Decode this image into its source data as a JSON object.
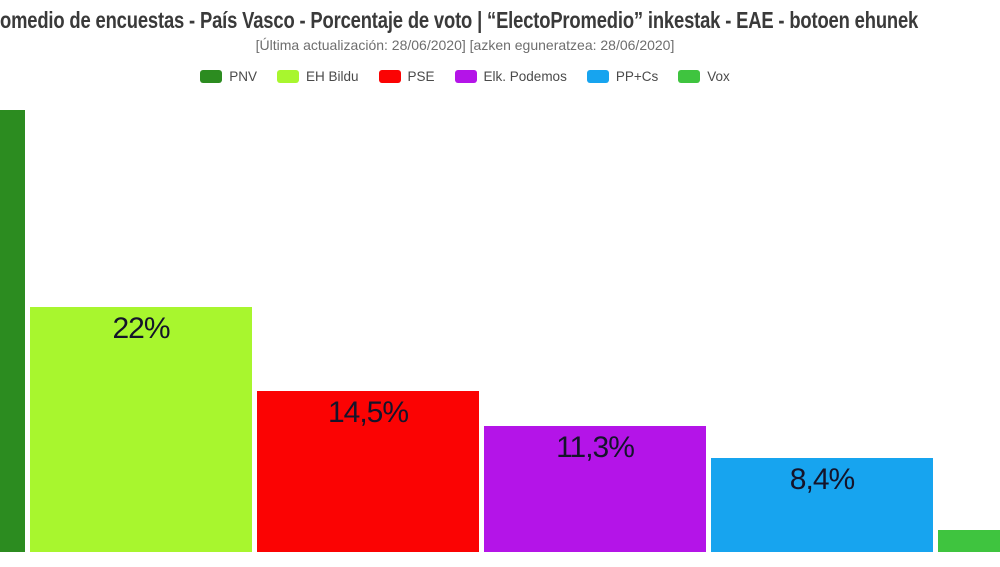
{
  "header": {
    "title_visible": "omedio de encuestas - País Vasco - Porcentaje de voto | “ElectoPromedio” inkestak - EAE - botoen ehunek",
    "subtitle": "[Última actualización: 28/06/2020] [azken eguneratzea: 28/06/2020]"
  },
  "legend": {
    "position": "top",
    "items": [
      "PNV",
      "EH Bildu",
      "PSE",
      "Elk. Podemos",
      "PP+Cs",
      "Vox"
    ]
  },
  "chart_data": {
    "type": "bar",
    "title": "omedio de encuestas - País Vasco - Porcentaje de voto | “ElectoPromedio” inkestak - EAE - botoen ehunek",
    "subtitle": "[Última actualización: 28/06/2020] [azken eguneratzea: 28/06/2020]",
    "categories": [
      "PNV",
      "EH Bildu",
      "PSE",
      "Elk. Podemos",
      "PP+Cs",
      "Vox"
    ],
    "values": [
      39.7,
      22,
      14.5,
      11.3,
      8.4,
      2
    ],
    "value_labels": [
      "",
      "22%",
      "14,5%",
      "11,3%",
      "8,4%",
      ""
    ],
    "labels_visible": [
      false,
      true,
      true,
      true,
      true,
      false
    ],
    "colors": [
      "#2c8c20",
      "#a8f62e",
      "#fb0303",
      "#b414e8",
      "#17a4ef",
      "#3fc43f"
    ],
    "label_color": "#14142a",
    "xlabel": "",
    "ylabel": "",
    "ylim": [
      0,
      42
    ],
    "grid": false,
    "legend_position": "top"
  }
}
